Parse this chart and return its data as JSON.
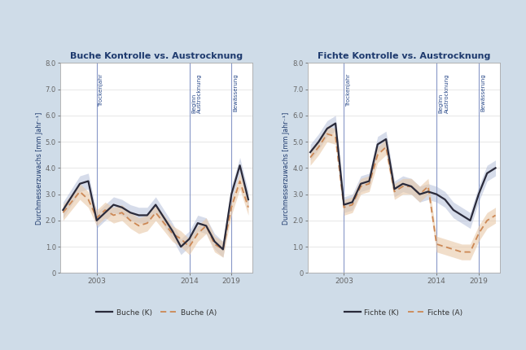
{
  "background_color": "#cfdce8",
  "plot_bg": "#ffffff",
  "title1": "Buche Kontrolle vs. Austrocknung",
  "title2": "Fichte Kontrolle vs. Austrocknung",
  "ylabel": "Durchmesserzuwachs [mm Jahr⁻¹]",
  "years": [
    1999,
    2000,
    2001,
    2002,
    2003,
    2004,
    2005,
    2006,
    2007,
    2008,
    2009,
    2010,
    2011,
    2012,
    2013,
    2014,
    2015,
    2016,
    2017,
    2018,
    2019,
    2020,
    2021
  ],
  "buche_K": [
    2.4,
    2.9,
    3.4,
    3.5,
    2.0,
    2.3,
    2.6,
    2.5,
    2.3,
    2.2,
    2.2,
    2.6,
    2.1,
    1.6,
    1.0,
    1.3,
    1.9,
    1.8,
    1.2,
    0.9,
    3.0,
    4.1,
    2.8
  ],
  "buche_K_low": [
    2.1,
    2.6,
    3.1,
    3.2,
    1.7,
    2.0,
    2.3,
    2.2,
    2.0,
    1.9,
    1.9,
    2.3,
    1.8,
    1.3,
    0.7,
    1.0,
    1.6,
    1.5,
    0.9,
    0.6,
    2.7,
    3.8,
    2.5
  ],
  "buche_K_high": [
    2.7,
    3.2,
    3.7,
    3.8,
    2.3,
    2.6,
    2.9,
    2.8,
    2.6,
    2.5,
    2.5,
    2.9,
    2.4,
    1.9,
    1.3,
    1.6,
    2.2,
    2.1,
    1.5,
    1.2,
    3.3,
    4.4,
    3.1
  ],
  "buche_A": [
    2.3,
    2.7,
    3.1,
    2.8,
    2.1,
    2.4,
    2.2,
    2.3,
    2.0,
    1.8,
    1.9,
    2.3,
    1.9,
    1.5,
    1.3,
    1.0,
    1.5,
    1.8,
    1.1,
    0.9,
    2.5,
    3.5,
    2.5
  ],
  "buche_A_low": [
    2.0,
    2.4,
    2.8,
    2.5,
    1.8,
    2.1,
    1.9,
    2.0,
    1.7,
    1.5,
    1.6,
    2.0,
    1.6,
    1.2,
    1.0,
    0.7,
    1.2,
    1.5,
    0.8,
    0.6,
    2.2,
    3.2,
    2.2
  ],
  "buche_A_high": [
    2.6,
    3.0,
    3.4,
    3.1,
    2.4,
    2.7,
    2.5,
    2.6,
    2.3,
    2.1,
    2.2,
    2.6,
    2.2,
    1.8,
    1.6,
    1.3,
    1.8,
    2.1,
    1.4,
    1.2,
    2.8,
    3.8,
    2.8
  ],
  "fichte_K": [
    4.6,
    5.0,
    5.5,
    5.7,
    2.6,
    2.7,
    3.4,
    3.5,
    4.9,
    5.1,
    3.2,
    3.4,
    3.3,
    3.0,
    3.1,
    3.0,
    2.8,
    2.4,
    2.2,
    2.0,
    3.0,
    3.8,
    4.0
  ],
  "fichte_K_low": [
    4.3,
    4.7,
    5.2,
    5.4,
    2.3,
    2.4,
    3.1,
    3.2,
    4.6,
    4.8,
    2.9,
    3.1,
    3.0,
    2.7,
    2.8,
    2.7,
    2.5,
    2.1,
    1.9,
    1.7,
    2.7,
    3.5,
    3.7
  ],
  "fichte_K_high": [
    4.9,
    5.3,
    5.8,
    6.0,
    2.9,
    3.0,
    3.7,
    3.8,
    5.2,
    5.4,
    3.5,
    3.7,
    3.6,
    3.3,
    3.4,
    3.3,
    3.1,
    2.7,
    2.5,
    2.3,
    3.3,
    4.1,
    4.3
  ],
  "fichte_A": [
    4.4,
    4.8,
    5.3,
    5.2,
    2.5,
    2.6,
    3.3,
    3.4,
    4.5,
    4.8,
    3.1,
    3.3,
    3.3,
    3.0,
    3.3,
    1.1,
    1.0,
    0.9,
    0.8,
    0.8,
    1.5,
    2.0,
    2.2
  ],
  "fichte_A_low": [
    4.1,
    4.5,
    5.0,
    4.9,
    2.2,
    2.3,
    3.0,
    3.1,
    4.2,
    4.5,
    2.8,
    3.0,
    3.0,
    2.7,
    3.0,
    0.8,
    0.7,
    0.6,
    0.5,
    0.5,
    1.2,
    1.7,
    1.9
  ],
  "fichte_A_high": [
    4.7,
    5.1,
    5.6,
    5.5,
    2.8,
    2.9,
    3.6,
    3.7,
    4.8,
    5.1,
    3.4,
    3.6,
    3.6,
    3.3,
    3.6,
    1.4,
    1.3,
    1.2,
    1.1,
    1.1,
    1.8,
    2.3,
    2.5
  ],
  "vline_year1": 2003,
  "vline_year2": 2014,
  "vline_year3": 2019,
  "vline_label1": "Trockenjahr",
  "vline_label2": "Beginn\nAustrocknung",
  "vline_label3": "Bewässerung",
  "vline_color": "#8898c8",
  "K_color": "#2a2a3a",
  "K_shade_color": "#9aa8cc",
  "A_color": "#cc8855",
  "A_shade_color": "#e8c8a8",
  "xticks": [
    2003,
    2014,
    2019
  ],
  "ylim": [
    0,
    8.0
  ],
  "yticks": [
    0,
    1.0,
    2.0,
    3.0,
    4.0,
    5.0,
    6.0,
    7.0,
    8.0
  ],
  "title_color": "#1e3a6e",
  "axis_label_color": "#1e3a6e",
  "vline_text_color": "#2a4a8a",
  "legend_K1": "Buche (K)",
  "legend_A1": "Buche (A)",
  "legend_K2": "Fichte (K)",
  "legend_A2": "Fichte (A)",
  "grid_color": "#dddddd",
  "spine_color": "#aaaaaa",
  "tick_color": "#666666"
}
